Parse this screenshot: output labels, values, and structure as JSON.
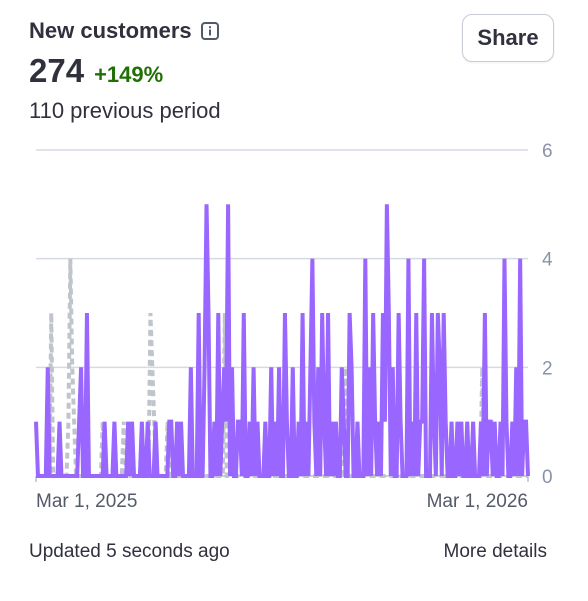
{
  "header": {
    "title": "New customers",
    "info_icon": "info-icon",
    "share_label": "Share"
  },
  "metric": {
    "value": "274",
    "change": "+149%",
    "change_color": "#217005",
    "previous": "110 previous period"
  },
  "footer": {
    "updated": "Updated 5 seconds ago",
    "more_details": "More details"
  },
  "colors": {
    "current_series": "#9966ff",
    "previous_series": "#c0c4cc",
    "gridline": "#d5dae3"
  },
  "chart_data": {
    "type": "line",
    "title": "",
    "xlabel": "",
    "ylabel": "",
    "ylim": [
      0,
      6
    ],
    "yticks": [
      0,
      2,
      4,
      6
    ],
    "y_axis_position": "right",
    "x_tick_labels": [
      "Mar 1, 2025",
      "Mar 1, 2026"
    ],
    "x_range": [
      "2025-03-01",
      "2026-03-01"
    ],
    "grid": true,
    "series": [
      {
        "values": [
          1,
          0,
          0,
          0,
          0,
          0,
          2,
          0,
          0,
          0,
          0,
          0,
          1,
          0,
          0,
          0,
          0,
          0,
          0,
          0,
          0,
          0,
          1,
          2,
          0,
          0,
          3,
          0,
          0,
          0,
          0,
          0,
          0,
          0,
          0,
          1,
          0,
          0,
          0,
          0,
          1,
          0,
          0,
          0,
          0,
          0,
          0,
          1,
          0,
          1,
          0,
          0,
          0,
          0,
          1,
          0,
          0,
          1,
          0,
          0,
          0,
          1,
          0,
          0,
          0,
          0,
          0,
          0,
          1,
          1,
          0,
          0,
          1,
          0,
          1,
          0,
          0,
          0,
          0,
          2,
          0,
          0,
          0,
          3,
          0,
          0,
          2,
          5,
          3,
          0,
          0,
          1,
          0,
          3,
          0,
          1,
          2,
          1,
          5,
          0,
          2,
          0,
          0,
          1,
          1,
          0,
          3,
          0,
          0,
          1,
          0,
          2,
          0,
          1,
          0,
          0,
          0,
          1,
          0,
          0,
          2,
          0,
          1,
          0,
          2,
          0,
          0,
          3,
          1,
          0,
          0,
          2,
          0,
          0,
          1,
          0,
          3,
          0,
          1,
          0,
          2,
          4,
          1,
          0,
          2,
          0,
          3,
          1,
          0,
          3,
          0,
          1,
          0,
          1,
          0,
          0,
          2,
          1,
          0,
          0,
          3,
          2,
          0,
          0,
          1,
          0,
          0,
          0,
          4,
          0,
          2,
          0,
          3,
          1,
          0,
          1,
          0,
          3,
          1,
          5,
          3,
          0,
          2,
          0,
          0,
          3,
          1,
          0,
          0,
          0,
          4,
          0,
          1,
          0,
          3,
          0,
          1,
          1,
          4,
          0,
          0,
          0,
          3,
          1,
          0,
          3,
          2,
          0,
          3,
          1,
          0,
          0,
          1,
          0,
          0,
          1,
          0,
          1,
          0,
          0,
          1,
          0,
          0,
          1,
          0,
          0,
          0,
          1,
          0,
          3,
          0,
          1,
          1,
          0,
          1,
          0,
          0,
          1,
          0,
          4,
          1,
          0,
          0,
          1,
          0,
          2,
          0,
          4,
          0,
          1,
          1,
          0
        ],
        "color": "#9966ff"
      },
      {
        "values": [
          0,
          0,
          0,
          0,
          0,
          0,
          0,
          0,
          3,
          0,
          0,
          0,
          0,
          0,
          0,
          0,
          0,
          1,
          4,
          2,
          1,
          0,
          0,
          0,
          0,
          0,
          0,
          0,
          0,
          0,
          0,
          0,
          0,
          0,
          0,
          1,
          0,
          0,
          0,
          0,
          0,
          0,
          0,
          0,
          0,
          0,
          1,
          0,
          0,
          0,
          0,
          0,
          0,
          0,
          0,
          0,
          0,
          0,
          0,
          0,
          3,
          2,
          1,
          0,
          0,
          0,
          0,
          0,
          0,
          1,
          0,
          0,
          0,
          0,
          0,
          0,
          0,
          0,
          0,
          0,
          0,
          0,
          0,
          0,
          0,
          0,
          0,
          0,
          0,
          0,
          0,
          0,
          0,
          0,
          0,
          0,
          0,
          0,
          0,
          3,
          0,
          0,
          0,
          0,
          0,
          0,
          0,
          0,
          0,
          0,
          0,
          0,
          0,
          0,
          0,
          0,
          0,
          0,
          0,
          0,
          0,
          0,
          0,
          0,
          0,
          0,
          0,
          0,
          0,
          0,
          0,
          0,
          0,
          0,
          0,
          0,
          0,
          0,
          0,
          0,
          0,
          0,
          0,
          0,
          0,
          0,
          0,
          0,
          0,
          0,
          0,
          0,
          0,
          0,
          0,
          0,
          0,
          0,
          0,
          0,
          0,
          0,
          2,
          0,
          0,
          0,
          0,
          0,
          0,
          0,
          0,
          0,
          0,
          0,
          0,
          0,
          0,
          0,
          0,
          0,
          0,
          0,
          0,
          0,
          0,
          0,
          0,
          0,
          0,
          0,
          0,
          0,
          0,
          0,
          0,
          0,
          0,
          0,
          0,
          0,
          0,
          0,
          0,
          0,
          0,
          0,
          0,
          0,
          0,
          0,
          0,
          0,
          0,
          0,
          0,
          0,
          0,
          0,
          0,
          0,
          0,
          0,
          0,
          0,
          0,
          0,
          0,
          0,
          0,
          0,
          0,
          0,
          0,
          0,
          2,
          0,
          0,
          0,
          0,
          0,
          0,
          0,
          0,
          0,
          0,
          0,
          0,
          0,
          0,
          0,
          0,
          0,
          0,
          0,
          0,
          0,
          0,
          0,
          0
        ],
        "color": "#c0c4cc",
        "style": "dashed"
      }
    ]
  }
}
